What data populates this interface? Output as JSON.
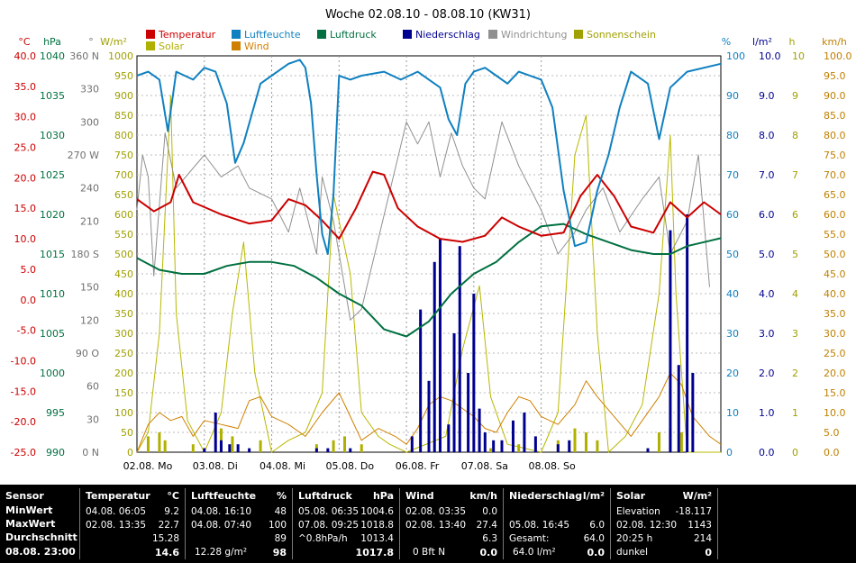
{
  "chart_data": {
    "type": "line",
    "title": "Woche 02.08.10 - 08.08.10 (KW31)",
    "x_ticks": [
      "02.08.  Mo",
      "03.08.  Di",
      "04.08.  Mi",
      "05.08.  Do",
      "06.08.  Fr",
      "07.08.  Sa",
      "08.08.  So"
    ],
    "legend": [
      {
        "name": "Temperatur",
        "color": "#cc0000"
      },
      {
        "name": "Luftfeuchte",
        "color": "#1080c0"
      },
      {
        "name": "Luftdruck",
        "color": "#007040"
      },
      {
        "name": "Niederschlag",
        "color": "#000090"
      },
      {
        "name": "Windrichtung",
        "color": "#909090"
      },
      {
        "name": "Sonnenschein",
        "color": "#a0a000"
      },
      {
        "name": "Solar",
        "color": "#b0b000"
      },
      {
        "name": "Wind",
        "color": "#d08000"
      }
    ],
    "axes": {
      "temp": {
        "unit": "°C",
        "color": "#cc0000",
        "ticks": [
          "40.0",
          "35.0",
          "30.0",
          "25.0",
          "20.0",
          "15.0",
          "10.0",
          "5.0",
          "0.0",
          "-5.0",
          "-10.0",
          "-15.0",
          "-20.0",
          "-25.0"
        ]
      },
      "press": {
        "unit": "hPa",
        "color": "#007040",
        "ticks": [
          "1040",
          "1035",
          "1030",
          "1025",
          "1020",
          "1015",
          "1010",
          "1005",
          "1000",
          "995",
          "990"
        ]
      },
      "dir": {
        "unit": "°",
        "color": "#707070",
        "ticks": [
          "360 N",
          "330",
          "300",
          "270 W",
          "240",
          "210",
          "180 S",
          "150",
          "120",
          "90 O",
          "60",
          "30",
          "0 N"
        ]
      },
      "solar": {
        "unit": "W/m²",
        "color": "#a0a000",
        "ticks": [
          "1000",
          "950",
          "900",
          "850",
          "800",
          "750",
          "700",
          "650",
          "600",
          "550",
          "500",
          "450",
          "400",
          "350",
          "300",
          "250",
          "200",
          "150",
          "100",
          "50",
          "0"
        ]
      },
      "hum": {
        "unit": "%",
        "color": "#1080c0",
        "ticks": [
          "100",
          "90",
          "80",
          "70",
          "60",
          "50",
          "40",
          "30",
          "20",
          "10",
          "0"
        ]
      },
      "rain": {
        "unit": "l/m²",
        "color": "#000090",
        "ticks": [
          "10.0",
          "9.0",
          "8.0",
          "7.0",
          "6.0",
          "5.0",
          "4.0",
          "3.0",
          "2.0",
          "1.0",
          "0.0"
        ]
      },
      "sun": {
        "unit": "h",
        "color": "#a0a000",
        "ticks": [
          "10",
          "9",
          "8",
          "7",
          "6",
          "5",
          "4",
          "3",
          "2",
          "1",
          "0"
        ]
      },
      "wind": {
        "unit": "km/h",
        "color": "#c08000",
        "ticks": [
          "100.0",
          "95.0",
          "90.0",
          "85.0",
          "80.0",
          "75.0",
          "70.0",
          "65.0",
          "60.0",
          "55.0",
          "50.0",
          "45.0",
          "40.0",
          "35.0",
          "30.0",
          "25.0",
          "20.0",
          "15.0",
          "10.0",
          "5.0",
          "0.0"
        ]
      }
    },
    "day_hours": [
      0,
      24,
      48,
      72,
      96,
      120,
      144,
      168
    ],
    "temperature": [
      [
        0,
        16.5
      ],
      [
        6,
        14.5
      ],
      [
        12,
        16
      ],
      [
        15,
        20.5
      ],
      [
        20,
        16
      ],
      [
        30,
        14
      ],
      [
        40,
        12.5
      ],
      [
        48,
        13
      ],
      [
        54,
        16.5
      ],
      [
        60,
        15.5
      ],
      [
        66,
        13
      ],
      [
        72,
        10
      ],
      [
        78,
        15
      ],
      [
        84,
        21
      ],
      [
        88,
        20.5
      ],
      [
        93,
        15
      ],
      [
        100,
        12
      ],
      [
        108,
        10
      ],
      [
        116,
        9.5
      ],
      [
        124,
        10.5
      ],
      [
        130,
        13.5
      ],
      [
        136,
        12
      ],
      [
        144,
        10.5
      ],
      [
        152,
        11
      ],
      [
        158,
        17
      ],
      [
        164,
        20.5
      ],
      [
        170,
        17
      ],
      [
        176,
        12
      ],
      [
        184,
        11
      ],
      [
        190,
        16
      ],
      [
        196,
        13.5
      ],
      [
        202,
        16
      ],
      [
        208,
        14
      ]
    ],
    "humidity": [
      [
        0,
        95
      ],
      [
        4,
        96
      ],
      [
        8,
        94
      ],
      [
        11,
        81
      ],
      [
        14,
        96
      ],
      [
        20,
        94
      ],
      [
        24,
        97
      ],
      [
        28,
        96
      ],
      [
        32,
        88
      ],
      [
        35,
        73
      ],
      [
        38,
        78
      ],
      [
        44,
        93
      ],
      [
        48,
        95
      ],
      [
        54,
        98
      ],
      [
        58,
        99
      ],
      [
        60,
        97
      ],
      [
        62,
        88
      ],
      [
        64,
        70
      ],
      [
        66,
        55
      ],
      [
        68,
        50
      ],
      [
        70,
        65
      ],
      [
        72,
        95
      ],
      [
        76,
        94
      ],
      [
        80,
        95
      ],
      [
        88,
        96
      ],
      [
        94,
        94
      ],
      [
        100,
        96
      ],
      [
        104,
        94
      ],
      [
        108,
        92
      ],
      [
        111,
        84
      ],
      [
        114,
        80
      ],
      [
        117,
        93
      ],
      [
        120,
        96
      ],
      [
        124,
        97
      ],
      [
        128,
        95
      ],
      [
        132,
        93
      ],
      [
        136,
        96
      ],
      [
        144,
        94
      ],
      [
        148,
        87
      ],
      [
        152,
        66
      ],
      [
        156,
        52
      ],
      [
        160,
        53
      ],
      [
        164,
        66
      ],
      [
        168,
        75
      ],
      [
        172,
        87
      ],
      [
        176,
        96
      ],
      [
        182,
        93
      ],
      [
        186,
        79
      ],
      [
        190,
        92
      ],
      [
        196,
        96
      ],
      [
        208,
        98
      ]
    ],
    "pressure": [
      [
        0,
        1014.5
      ],
      [
        8,
        1013
      ],
      [
        16,
        1012.5
      ],
      [
        24,
        1012.5
      ],
      [
        32,
        1013.5
      ],
      [
        40,
        1014
      ],
      [
        48,
        1014
      ],
      [
        56,
        1013.5
      ],
      [
        64,
        1012
      ],
      [
        72,
        1010
      ],
      [
        80,
        1008.5
      ],
      [
        88,
        1005.5
      ],
      [
        96,
        1004.6
      ],
      [
        104,
        1006.5
      ],
      [
        112,
        1010
      ],
      [
        120,
        1012.5
      ],
      [
        128,
        1014
      ],
      [
        136,
        1016.5
      ],
      [
        144,
        1018.5
      ],
      [
        152,
        1018.8
      ],
      [
        160,
        1017.5
      ],
      [
        168,
        1016.5
      ],
      [
        176,
        1015.5
      ],
      [
        184,
        1015
      ],
      [
        190,
        1015
      ],
      [
        196,
        1016
      ],
      [
        202,
        1016.5
      ],
      [
        208,
        1017
      ]
    ],
    "rain": [
      [
        24,
        0.1
      ],
      [
        28,
        1.0
      ],
      [
        30,
        0.3
      ],
      [
        33,
        0.2
      ],
      [
        36,
        0.2
      ],
      [
        40,
        0.1
      ],
      [
        64,
        0.1
      ],
      [
        68,
        0.1
      ],
      [
        76,
        0.1
      ],
      [
        98,
        0.4
      ],
      [
        101,
        3.6
      ],
      [
        104,
        1.8
      ],
      [
        106,
        4.8
      ],
      [
        108,
        5.4
      ],
      [
        111,
        0.7
      ],
      [
        113,
        3.0
      ],
      [
        115,
        5.2
      ],
      [
        118,
        2.0
      ],
      [
        120,
        4.0
      ],
      [
        122,
        1.1
      ],
      [
        124,
        0.5
      ],
      [
        127,
        0.3
      ],
      [
        130,
        0.3
      ],
      [
        134,
        0.8
      ],
      [
        138,
        1.0
      ],
      [
        142,
        0.4
      ],
      [
        150,
        0.2
      ],
      [
        154,
        0.3
      ],
      [
        182,
        0.1
      ],
      [
        190,
        5.6
      ],
      [
        193,
        2.2
      ],
      [
        196,
        6.0
      ],
      [
        198,
        2.0
      ]
    ],
    "solar": [
      [
        0,
        0
      ],
      [
        4,
        50
      ],
      [
        8,
        300
      ],
      [
        12,
        900
      ],
      [
        14,
        350
      ],
      [
        18,
        80
      ],
      [
        24,
        0
      ],
      [
        30,
        100
      ],
      [
        34,
        350
      ],
      [
        38,
        530
      ],
      [
        42,
        200
      ],
      [
        48,
        0
      ],
      [
        54,
        30
      ],
      [
        60,
        50
      ],
      [
        66,
        150
      ],
      [
        70,
        650
      ],
      [
        76,
        450
      ],
      [
        80,
        100
      ],
      [
        86,
        40
      ],
      [
        90,
        20
      ],
      [
        96,
        0
      ],
      [
        110,
        40
      ],
      [
        116,
        260
      ],
      [
        122,
        420
      ],
      [
        126,
        140
      ],
      [
        132,
        20
      ],
      [
        144,
        0
      ],
      [
        150,
        100
      ],
      [
        156,
        750
      ],
      [
        160,
        850
      ],
      [
        164,
        300
      ],
      [
        168,
        0
      ],
      [
        174,
        40
      ],
      [
        180,
        120
      ],
      [
        186,
        400
      ],
      [
        190,
        800
      ],
      [
        192,
        400
      ],
      [
        196,
        0
      ],
      [
        208,
        0
      ]
    ],
    "wind_dir": [
      [
        0,
        220
      ],
      [
        2,
        270
      ],
      [
        4,
        250
      ],
      [
        6,
        160
      ],
      [
        10,
        290
      ],
      [
        14,
        240
      ],
      [
        24,
        270
      ],
      [
        30,
        250
      ],
      [
        36,
        260
      ],
      [
        40,
        240
      ],
      [
        48,
        230
      ],
      [
        54,
        200
      ],
      [
        58,
        240
      ],
      [
        64,
        180
      ],
      [
        66,
        250
      ],
      [
        70,
        210
      ],
      [
        76,
        120
      ],
      [
        80,
        130
      ],
      [
        96,
        300
      ],
      [
        100,
        280
      ],
      [
        104,
        300
      ],
      [
        108,
        250
      ],
      [
        112,
        290
      ],
      [
        116,
        260
      ],
      [
        120,
        240
      ],
      [
        124,
        230
      ],
      [
        130,
        300
      ],
      [
        136,
        260
      ],
      [
        144,
        220
      ],
      [
        150,
        180
      ],
      [
        156,
        200
      ],
      [
        160,
        220
      ],
      [
        166,
        240
      ],
      [
        172,
        200
      ],
      [
        180,
        230
      ],
      [
        186,
        250
      ],
      [
        190,
        180
      ],
      [
        196,
        210
      ],
      [
        200,
        270
      ],
      [
        204,
        150
      ]
    ],
    "wind": [
      [
        0,
        0
      ],
      [
        4,
        7
      ],
      [
        8,
        10
      ],
      [
        12,
        8
      ],
      [
        16,
        9
      ],
      [
        20,
        4
      ],
      [
        24,
        8
      ],
      [
        30,
        7
      ],
      [
        36,
        6
      ],
      [
        40,
        13
      ],
      [
        44,
        14
      ],
      [
        48,
        9
      ],
      [
        54,
        7
      ],
      [
        60,
        4
      ],
      [
        66,
        10
      ],
      [
        72,
        15
      ],
      [
        76,
        9
      ],
      [
        80,
        3
      ],
      [
        86,
        6
      ],
      [
        92,
        4
      ],
      [
        96,
        2
      ],
      [
        100,
        6
      ],
      [
        104,
        12
      ],
      [
        108,
        14
      ],
      [
        112,
        13
      ],
      [
        116,
        11
      ],
      [
        120,
        9
      ],
      [
        124,
        6
      ],
      [
        128,
        5
      ],
      [
        132,
        10
      ],
      [
        136,
        14
      ],
      [
        140,
        13
      ],
      [
        144,
        9
      ],
      [
        150,
        7
      ],
      [
        156,
        12
      ],
      [
        160,
        18
      ],
      [
        164,
        14
      ],
      [
        170,
        9
      ],
      [
        176,
        4
      ],
      [
        180,
        8
      ],
      [
        186,
        14
      ],
      [
        190,
        20
      ],
      [
        194,
        17
      ],
      [
        198,
        9
      ],
      [
        204,
        4
      ],
      [
        208,
        2
      ]
    ],
    "sunshine": [
      [
        4,
        0.4
      ],
      [
        8,
        0.5
      ],
      [
        10,
        0.3
      ],
      [
        20,
        0.2
      ],
      [
        30,
        0.6
      ],
      [
        34,
        0.4
      ],
      [
        44,
        0.3
      ],
      [
        64,
        0.2
      ],
      [
        70,
        0.3
      ],
      [
        74,
        0.4
      ],
      [
        80,
        0.2
      ],
      [
        126,
        0.1
      ],
      [
        136,
        0.2
      ],
      [
        150,
        0.3
      ],
      [
        156,
        0.6
      ],
      [
        160,
        0.5
      ],
      [
        164,
        0.3
      ],
      [
        186,
        0.5
      ],
      [
        190,
        0.6
      ],
      [
        194,
        0.5
      ]
    ]
  },
  "footer": {
    "sensor": {
      "title": "Sensor",
      "rows": [
        "MinWert",
        "MaxWert",
        "Durchschnitt",
        "08.08.  23:00"
      ]
    },
    "temperatur": {
      "title": "Temperatur",
      "unit": "°C",
      "min": {
        "when": "04.08.  06:05",
        "val": "9.2"
      },
      "max": {
        "when": "02.08.  13:35",
        "val": "22.7"
      },
      "avg": "15.28",
      "cur": "14.6"
    },
    "luftfeuchte": {
      "title": "Luftfeuchte",
      "unit": "%",
      "min": {
        "when": "04.08.  16:10",
        "val": "48"
      },
      "max": {
        "when": "04.08.  07:40",
        "val": "100"
      },
      "avg": "89",
      "cur_abs": "12.28 g/m²",
      "cur": "98"
    },
    "luftdruck": {
      "title": "Luftdruck",
      "unit": "hPa",
      "min": {
        "when": "05.08.  06:35",
        "val": "1004.6"
      },
      "max": {
        "when": "07.08.  09:25",
        "val": "1018.8"
      },
      "trend": "^0.8hPa/h",
      "avg": "1013.4",
      "cur": "1017.8"
    },
    "wind": {
      "title": "Wind",
      "unit": "km/h",
      "min": {
        "when": "02.08.  03:35",
        "val": "0.0"
      },
      "max": {
        "when": "02.08.  13:40",
        "val": "27.4"
      },
      "avg": "6.3",
      "bft": "0 Bft N",
      "cur": "0.0"
    },
    "niederschlag": {
      "title": "Niederschlag",
      "unit": "l/m²",
      "max": {
        "when": "05.08.  16:45",
        "val": "6.0"
      },
      "total_label": "Gesamt:",
      "total": "64.0",
      "cur_sum": "64.0 l/m²",
      "cur": "0.0"
    },
    "solar": {
      "title": "Solar",
      "unit": "W/m²",
      "r1": {
        "label": "Elevation",
        "val": "-18.117"
      },
      "r2": {
        "when": "02.08.  12:30",
        "val": "1143"
      },
      "r3": {
        "label": "20:25 h",
        "val": "214"
      },
      "r4": {
        "label": "dunkel",
        "val": "0"
      }
    }
  }
}
